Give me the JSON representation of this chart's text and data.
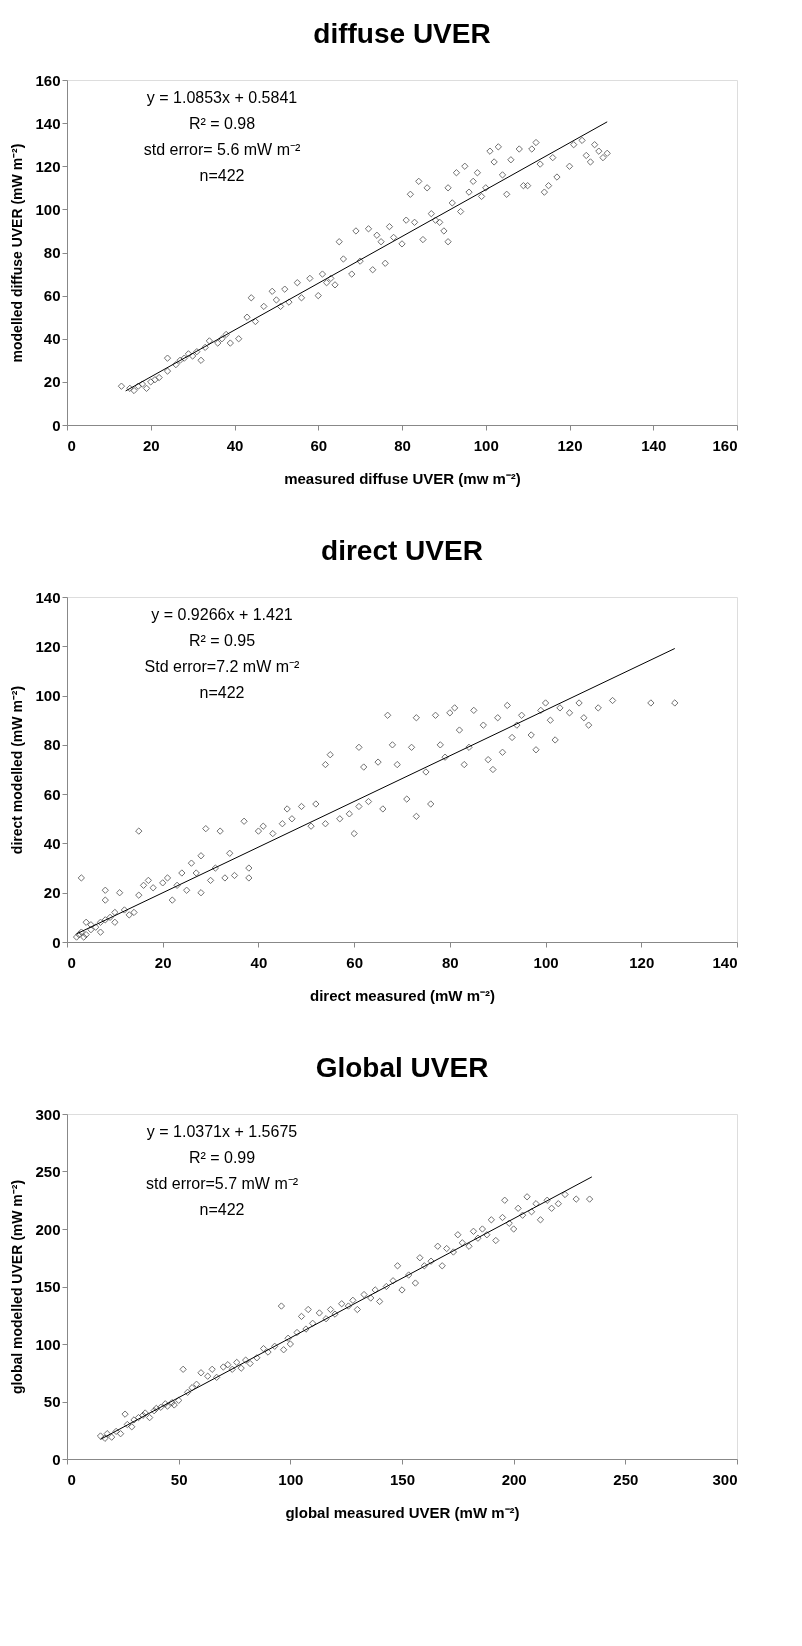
{
  "chart_data": [
    {
      "type": "scatter",
      "title": "diffuse UVER",
      "xlabel": "measured diffuse UVER (mw m⁻²)",
      "ylabel": "modelled diffuse UVER (mW m⁻²)",
      "xlim": [
        0,
        160
      ],
      "ylim": [
        0,
        160
      ],
      "xticks": [
        0,
        20,
        40,
        60,
        80,
        100,
        120,
        140,
        160
      ],
      "yticks": [
        0,
        20,
        40,
        60,
        80,
        100,
        120,
        140,
        160
      ],
      "grid": false,
      "annotations": [
        "y = 1.0853x + 0.5841",
        "R² = 0.98",
        "std error= 5.6 mW m⁻²",
        "n=422"
      ],
      "series": [
        {
          "marker": "diamond",
          "color": "#333333",
          "x": [
            13,
            15,
            16,
            17,
            18,
            19,
            20,
            21,
            22,
            24,
            24,
            26,
            27,
            28,
            29,
            30,
            31,
            32,
            33,
            34,
            36,
            37,
            38,
            39,
            41,
            43,
            44,
            45,
            47,
            49,
            50,
            51,
            52,
            53,
            55,
            56,
            58,
            60,
            61,
            62,
            63,
            64,
            65,
            66,
            68,
            69,
            70,
            72,
            73,
            74,
            75,
            76,
            77,
            78,
            80,
            81,
            82,
            83,
            84,
            85,
            86,
            87,
            88,
            89,
            90,
            91,
            91,
            92,
            93,
            94,
            95,
            96,
            97,
            98,
            99,
            100,
            101,
            102,
            103,
            104,
            105,
            106,
            108,
            109,
            110,
            111,
            112,
            113,
            114,
            115,
            116,
            117,
            120,
            121,
            123,
            124,
            125,
            126,
            127,
            128,
            129
          ],
          "values": [
            18,
            17,
            16,
            18,
            19,
            17,
            20,
            21,
            22,
            25,
            31,
            28,
            30,
            31,
            33,
            32,
            34,
            30,
            36,
            39,
            38,
            40,
            42,
            38,
            40,
            50,
            59,
            48,
            55,
            62,
            58,
            55,
            63,
            57,
            66,
            59,
            68,
            60,
            70,
            66,
            68,
            65,
            85,
            77,
            70,
            90,
            76,
            91,
            72,
            88,
            85,
            75,
            92,
            87,
            84,
            95,
            107,
            94,
            113,
            86,
            110,
            98,
            95,
            94,
            90,
            85,
            110,
            103,
            117,
            99,
            120,
            108,
            113,
            117,
            106,
            110,
            127,
            122,
            129,
            116,
            107,
            123,
            128,
            111,
            111,
            128,
            131,
            121,
            108,
            111,
            124,
            115,
            120,
            130,
            132,
            125,
            122,
            130,
            127,
            124,
            126
          ]
        },
        {
          "type": "line",
          "color": "#000000",
          "x": [
            14,
            129
          ],
          "values": [
            15.8,
            140.6
          ],
          "marker": "none"
        }
      ]
    },
    {
      "type": "scatter",
      "title": "direct UVER",
      "xlabel": "direct measured (mW m⁻²)",
      "ylabel": "direct modelled (mW m⁻²)",
      "xlim": [
        0,
        140
      ],
      "ylim": [
        0,
        140
      ],
      "xticks": [
        0,
        20,
        40,
        60,
        80,
        100,
        120,
        140
      ],
      "yticks": [
        0,
        20,
        40,
        60,
        80,
        100,
        120,
        140
      ],
      "grid": false,
      "annotations": [
        "y = 0.9266x + 1.421",
        "R² = 0.95",
        "Std error=7.2 mW m⁻²",
        "n=422"
      ],
      "series": [
        {
          "marker": "diamond",
          "color": "#333333",
          "x": [
            2,
            2.5,
            3,
            3,
            3.5,
            4,
            4,
            5,
            5,
            6,
            7,
            7,
            8,
            8,
            8,
            9,
            10,
            10,
            11,
            12,
            13,
            14,
            15,
            15,
            16,
            17,
            18,
            20,
            21,
            22,
            23,
            24,
            25,
            26,
            27,
            28,
            28,
            29,
            30,
            31,
            32,
            33,
            34,
            35,
            37,
            38,
            38,
            40,
            41,
            43,
            45,
            46,
            47,
            49,
            51,
            52,
            54,
            54,
            55,
            57,
            59,
            60,
            61,
            61,
            62,
            63,
            65,
            66,
            67,
            68,
            69,
            71,
            72,
            73,
            73,
            75,
            76,
            77,
            78,
            79,
            80,
            81,
            82,
            83,
            84,
            85,
            87,
            88,
            89,
            90,
            91,
            92,
            93,
            94,
            95,
            97,
            98,
            99,
            100,
            101,
            102,
            103,
            105,
            107,
            108,
            109,
            111,
            114,
            122,
            127
          ],
          "values": [
            2,
            3,
            4,
            26,
            2,
            8,
            3,
            5,
            7,
            6,
            8,
            4,
            21,
            17,
            9,
            10,
            8,
            12,
            20,
            13,
            11,
            12,
            45,
            19,
            23,
            25,
            22,
            24,
            26,
            17,
            23,
            28,
            21,
            32,
            28,
            35,
            20,
            46,
            25,
            30,
            45,
            26,
            36,
            27,
            49,
            30,
            26,
            45,
            47,
            44,
            48,
            54,
            50,
            55,
            47,
            56,
            48,
            72,
            76,
            50,
            52,
            44,
            55,
            79,
            71,
            57,
            73,
            54,
            92,
            80,
            72,
            58,
            79,
            91,
            51,
            69,
            56,
            92,
            80,
            75,
            93,
            95,
            86,
            72,
            79,
            94,
            88,
            74,
            70,
            91,
            77,
            96,
            83,
            88,
            92,
            84,
            78,
            94,
            97,
            90,
            82,
            95,
            93,
            97,
            91,
            88,
            95,
            98,
            97,
            97
          ]
        },
        {
          "type": "line",
          "color": "#000000",
          "x": [
            2,
            127
          ],
          "values": [
            3.3,
            119.1
          ],
          "marker": "none"
        }
      ]
    },
    {
      "type": "scatter",
      "title": "Global UVER",
      "xlabel": "global measured UVER (mW m⁻²)",
      "ylabel": "global modelled UVER (mW m⁻²)",
      "xlim": [
        0,
        300
      ],
      "ylim": [
        0,
        300
      ],
      "xticks": [
        0,
        50,
        100,
        150,
        200,
        250,
        300
      ],
      "yticks": [
        0,
        50,
        100,
        150,
        200,
        250,
        300
      ],
      "grid": false,
      "annotations": [
        "y = 1.0371x + 1.5675",
        "R² = 0.99",
        "std error=5.7 mW m⁻²",
        "n=422"
      ],
      "series": [
        {
          "marker": "diamond",
          "color": "#333333",
          "x": [
            15,
            17,
            18,
            20,
            22,
            24,
            26,
            27,
            29,
            30,
            32,
            34,
            35,
            37,
            39,
            40,
            42,
            44,
            45,
            47,
            48,
            50,
            52,
            54,
            56,
            58,
            60,
            63,
            65,
            67,
            70,
            72,
            74,
            76,
            78,
            80,
            82,
            85,
            88,
            90,
            93,
            96,
            97,
            99,
            100,
            103,
            105,
            107,
            108,
            110,
            113,
            116,
            118,
            120,
            123,
            126,
            128,
            130,
            133,
            136,
            138,
            140,
            143,
            146,
            148,
            150,
            153,
            156,
            158,
            160,
            163,
            166,
            168,
            170,
            173,
            175,
            177,
            180,
            182,
            184,
            186,
            188,
            190,
            192,
            195,
            196,
            198,
            200,
            202,
            204,
            206,
            208,
            210,
            212,
            215,
            217,
            220,
            223,
            228,
            234
          ],
          "values": [
            20,
            18,
            22,
            19,
            24,
            22,
            39,
            30,
            28,
            34,
            36,
            38,
            40,
            36,
            42,
            44,
            45,
            48,
            46,
            49,
            47,
            51,
            78,
            58,
            62,
            65,
            75,
            72,
            78,
            71,
            80,
            82,
            78,
            84,
            79,
            86,
            83,
            88,
            96,
            93,
            98,
            133,
            95,
            105,
            100,
            110,
            124,
            113,
            130,
            118,
            127,
            122,
            130,
            126,
            135,
            133,
            138,
            130,
            143,
            140,
            147,
            137,
            150,
            155,
            168,
            147,
            160,
            153,
            175,
            168,
            172,
            185,
            168,
            183,
            180,
            195,
            188,
            185,
            198,
            192,
            200,
            195,
            208,
            190,
            210,
            225,
            205,
            200,
            218,
            212,
            228,
            215,
            222,
            208,
            225,
            218,
            222,
            230,
            226,
            226
          ]
        },
        {
          "type": "line",
          "color": "#000000",
          "x": [
            15,
            235
          ],
          "values": [
            17.1,
            245.3
          ],
          "marker": "none"
        }
      ]
    }
  ]
}
